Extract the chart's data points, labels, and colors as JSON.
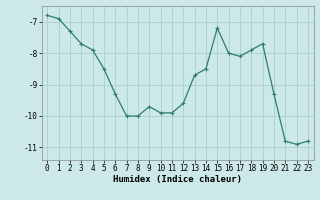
{
  "x": [
    0,
    1,
    2,
    3,
    4,
    5,
    6,
    7,
    8,
    9,
    10,
    11,
    12,
    13,
    14,
    15,
    16,
    17,
    18,
    19,
    20,
    21,
    22,
    23
  ],
  "y": [
    -6.8,
    -6.9,
    -7.3,
    -7.7,
    -7.9,
    -8.5,
    -9.3,
    -10.0,
    -10.0,
    -9.7,
    -9.9,
    -9.9,
    -9.6,
    -8.7,
    -8.5,
    -7.2,
    -8.0,
    -8.1,
    -7.9,
    -7.7,
    -9.3,
    -10.8,
    -10.9,
    -10.8
  ],
  "xlabel": "Humidex (Indice chaleur)",
  "xlim": [
    -0.5,
    23.5
  ],
  "ylim": [
    -11.4,
    -6.5
  ],
  "yticks": [
    -11,
    -10,
    -9,
    -8,
    -7
  ],
  "xticks": [
    0,
    1,
    2,
    3,
    4,
    5,
    6,
    7,
    8,
    9,
    10,
    11,
    12,
    13,
    14,
    15,
    16,
    17,
    18,
    19,
    20,
    21,
    22,
    23
  ],
  "line_color": "#2e7d6e",
  "marker": "+",
  "bg_color": "#cce8e8",
  "grid_color": "#aacfcf",
  "axis_fontsize": 6.5,
  "tick_fontsize": 5.5,
  "line_width": 0.9,
  "marker_size": 3,
  "marker_edge_width": 0.8
}
